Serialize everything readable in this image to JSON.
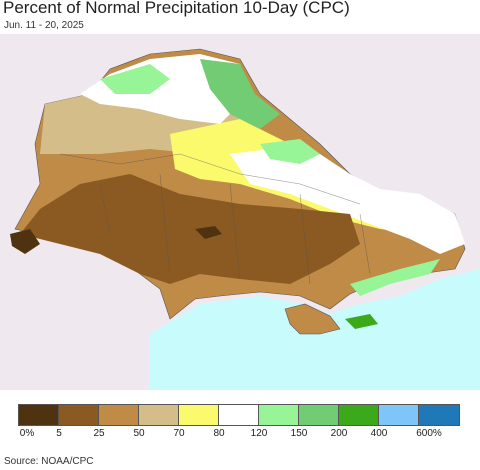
{
  "title": "Percent of Normal Precipitation 10-Day (CPC)",
  "subtitle": "Jun. 11 - 20, 2025",
  "source": "Source: NOAA/CPC",
  "legend": {
    "colors": [
      "#4f3311",
      "#8b5a22",
      "#c08a47",
      "#d5bd8a",
      "#fbfa6d",
      "#ffffff",
      "#97f598",
      "#72cc73",
      "#3ca91b",
      "#7ec6f8",
      "#1f78b8"
    ],
    "ticks": [
      "0%",
      "5",
      "25",
      "50",
      "70",
      "80",
      "120",
      "150",
      "200",
      "400",
      "600%"
    ]
  },
  "map_colors": {
    "background": "#efe9ef",
    "sea": "#c8fcfc",
    "border": "#555555"
  }
}
